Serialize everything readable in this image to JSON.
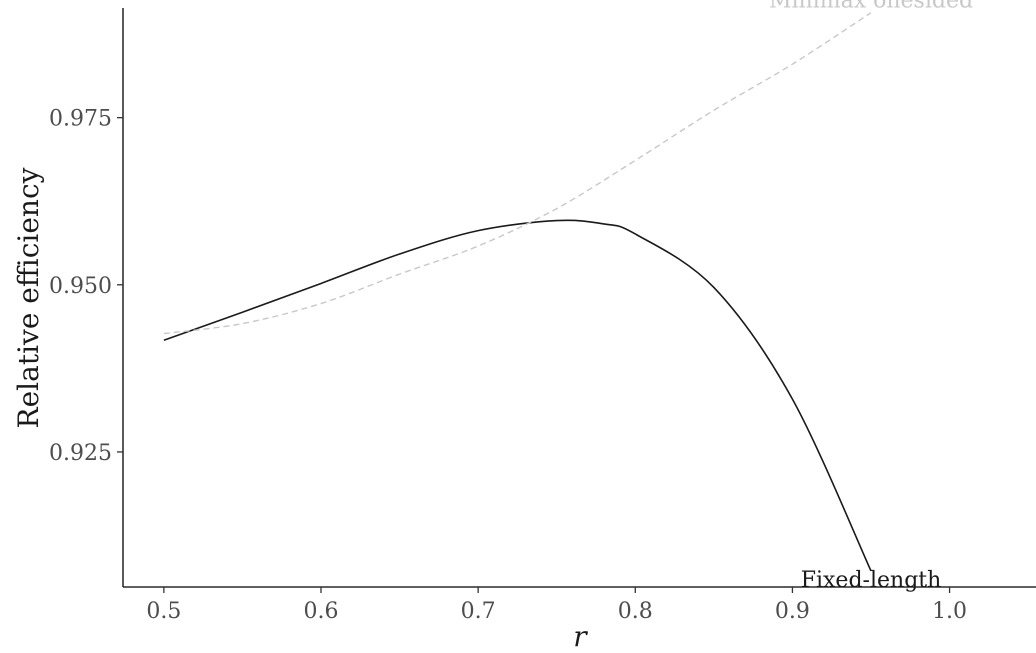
{
  "chart_data": {
    "type": "line",
    "xlabel": "r",
    "ylabel": "Relative efficiency",
    "xlim": [
      0.474,
      1.055
    ],
    "ylim": [
      0.9048,
      0.9914
    ],
    "x_ticks": [
      0.5,
      0.6,
      0.7,
      0.8,
      0.9,
      1.0
    ],
    "x_tick_labels": [
      "0.5",
      "0.6",
      "0.7",
      "0.8",
      "0.9",
      "1.0"
    ],
    "y_ticks": [
      0.925,
      0.95,
      0.975
    ],
    "y_tick_labels": [
      "0.925",
      "0.950",
      "0.975"
    ],
    "grid": false,
    "series": [
      {
        "name": "Fixed-length",
        "color": "#1a1a1a",
        "line_style": "solid",
        "x": [
          0.5,
          0.55,
          0.6,
          0.65,
          0.7,
          0.75,
          0.78,
          0.8,
          0.85,
          0.9,
          0.95
        ],
        "y": [
          0.9417,
          0.9459,
          0.9502,
          0.9546,
          0.9581,
          0.9596,
          0.9591,
          0.9576,
          0.9496,
          0.9329,
          0.9072
        ]
      },
      {
        "name": "Minimax onesided",
        "color": "#c8c8c8",
        "line_style": "dashed",
        "x": [
          0.5,
          0.55,
          0.6,
          0.65,
          0.7,
          0.75,
          0.8,
          0.85,
          0.9,
          0.95
        ],
        "y": [
          0.9427,
          0.9442,
          0.9472,
          0.9516,
          0.9558,
          0.9614,
          0.9686,
          0.9761,
          0.983,
          0.9907
        ]
      }
    ]
  }
}
